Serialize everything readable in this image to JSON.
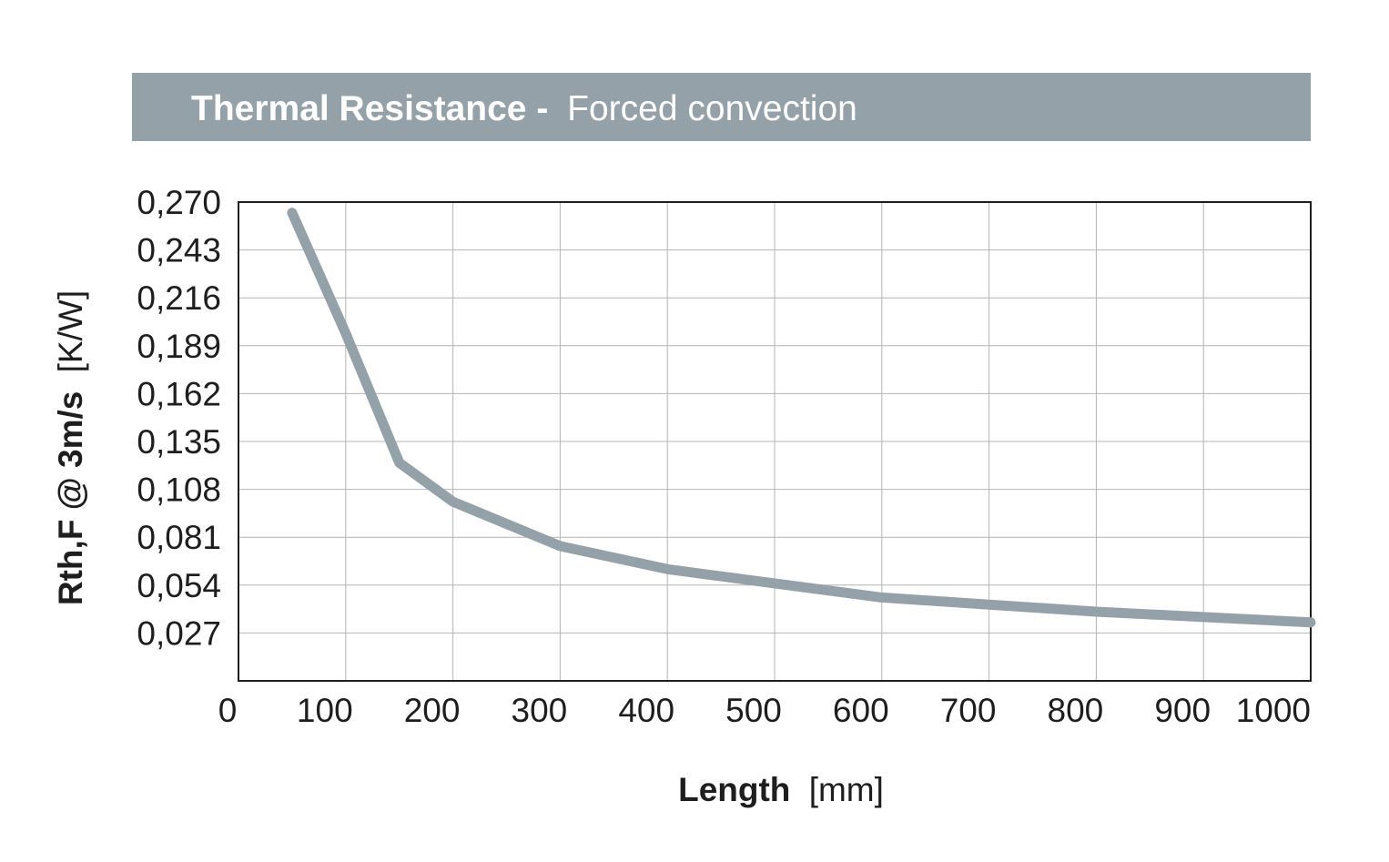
{
  "chart_data": {
    "type": "line",
    "title": "Thermal Resistance -",
    "subtitle": "Forced convection",
    "xlabel": "Length",
    "xlabel_unit": "[mm]",
    "ylabel": "Rth,F @ 3m/s",
    "ylabel_unit": "[K/W]",
    "xlim": [
      0,
      1000
    ],
    "ylim": [
      0,
      0.27
    ],
    "x_ticks": [
      "0",
      "100",
      "200",
      "300",
      "400",
      "500",
      "600",
      "700",
      "800",
      "900",
      "1000"
    ],
    "y_ticks": [
      "0,027",
      "0,054",
      "0,081",
      "0,108",
      "0,135",
      "0,162",
      "0,189",
      "0,216",
      "0,243",
      "0,270"
    ],
    "grid": true,
    "legend": "none",
    "series": [
      {
        "color": "#95a1a8",
        "x": [
          50,
          100,
          150,
          200,
          300,
          400,
          500,
          600,
          700,
          800,
          900,
          1000
        ],
        "y": [
          0.264,
          0.196,
          0.123,
          0.101,
          0.076,
          0.063,
          0.055,
          0.047,
          0.043,
          0.039,
          0.036,
          0.033
        ]
      }
    ]
  }
}
